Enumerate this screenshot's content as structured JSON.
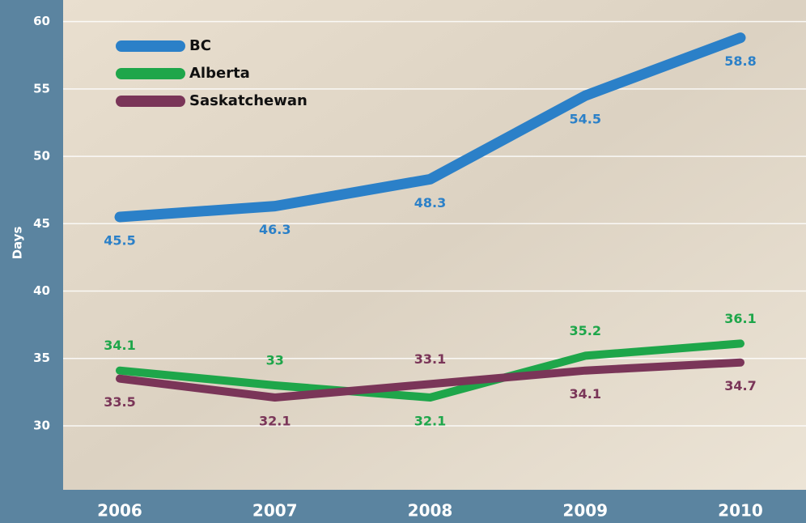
{
  "chart_data": {
    "type": "line",
    "y_axis_label": "Days",
    "categories": [
      "2006",
      "2007",
      "2008",
      "2009",
      "2010"
    ],
    "series": [
      {
        "name": "BC",
        "color": "#2b80c8",
        "values": [
          45.5,
          46.3,
          48.3,
          54.5,
          58.8
        ]
      },
      {
        "name": "Alberta",
        "color": "#1ea64a",
        "values": [
          34.1,
          33.0,
          32.1,
          35.2,
          36.1
        ]
      },
      {
        "name": "Saskatchewan",
        "color": "#7a3558",
        "values": [
          33.5,
          32.1,
          33.1,
          34.1,
          34.7
        ]
      }
    ],
    "ylim": [
      25.25,
      61.6
    ],
    "yticks": [
      30,
      35,
      40,
      45,
      50,
      55,
      60
    ],
    "grid": true,
    "legend": "top-left"
  }
}
